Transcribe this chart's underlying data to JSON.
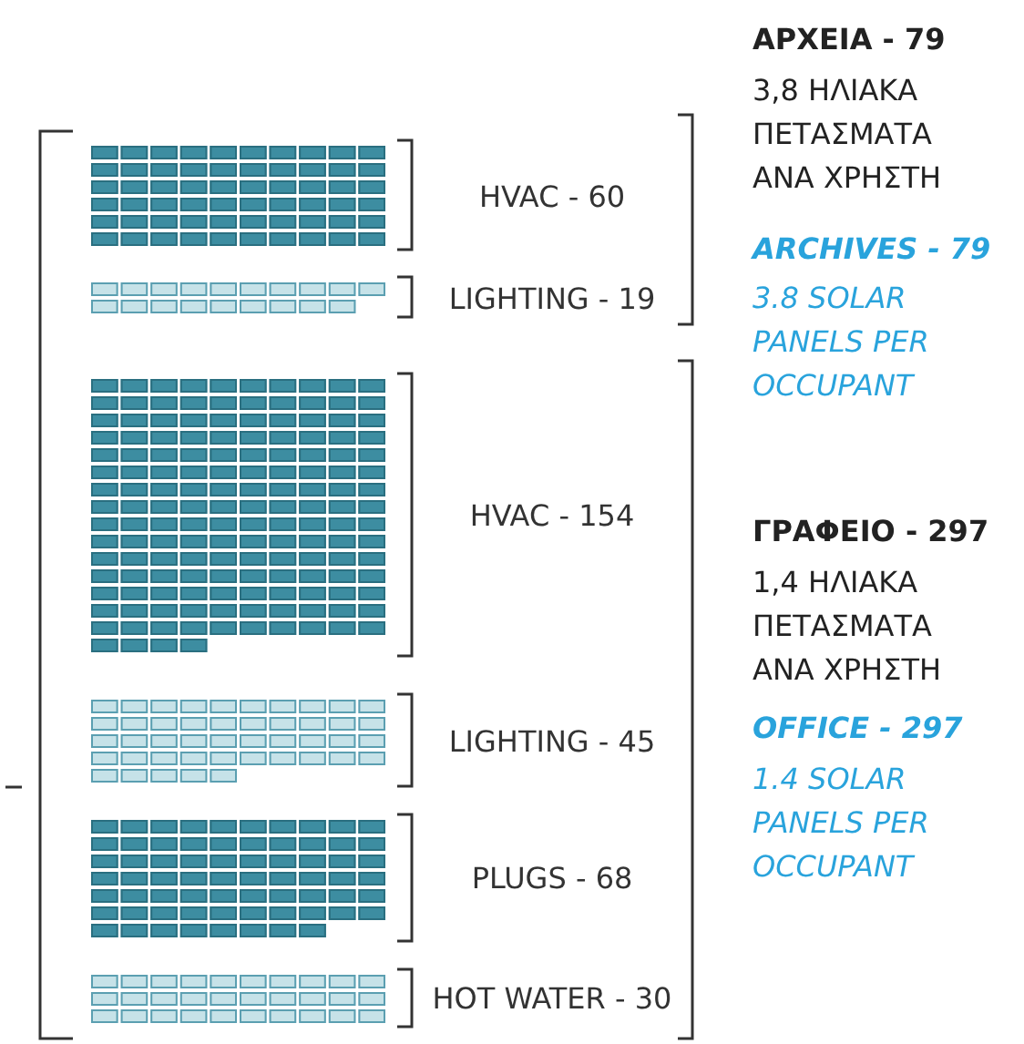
{
  "chart_data": {
    "type": "other",
    "categories": [
      "HVAC -",
      "LIGHTING -",
      "HVAC -",
      "LIGHTING -",
      "PLUGS -",
      "HOT WATER -"
    ],
    "values": [
      60,
      19,
      154,
      45,
      68,
      30
    ],
    "data_labels": true,
    "colors": [
      "#3d8da1",
      "#c6e2e8",
      "#3d8da1",
      "#c6e2e8",
      "#3d8da1",
      "#c6e2e8"
    ],
    "annotations": [
      "ΑΡΧΕΙΑ - 79",
      "3,8 ΗΛΙΑΚΑ ΠΕΤΑΣΜΑΤΑ ΑΝΑ ΧΡΗΣΤΗ",
      "ARCHIVES - 79",
      "3.8 SOLAR PANELS PER OCCUPANT",
      "ΓΡΑΦΕΙΟ - 297",
      "1,4 ΗΛΙΑΚΑ ΠΕΤΑΣΜΑΤΑ ΑΝΑ ΧΡΗΣΤΗ",
      "OFFICE - 297",
      "1.4 SOLAR PANELS PER OCCUPANT"
    ]
  }
}
